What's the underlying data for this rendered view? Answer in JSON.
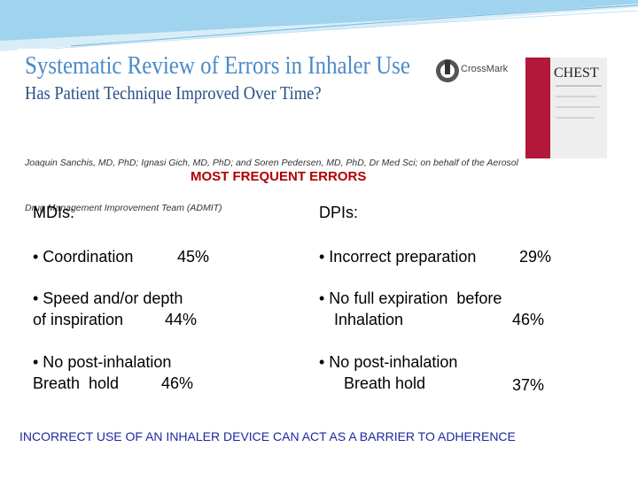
{
  "header": {
    "title": "Systematic Review of Errors in Inhaler Use",
    "subtitle": "Has Patient Technique Improved Over Time?",
    "authors": [
      "Joaquin Sanchis, MD, PhD; Ignasi Gich, MD, PhD; and Soren Pedersen, MD, PhD, Dr Med Sci; on behalf of the Aerosol",
      "Drug Management Improvement Team (ADMIT)"
    ],
    "logo": "CrossMark",
    "journal": "CHEST"
  },
  "section_title": "MOST FREQUENT ERRORS",
  "columns": [
    {
      "heading": "MDIs:",
      "items": [
        {
          "lines": [
            "• Coordination"
          ],
          "value": "45%"
        },
        {
          "lines": [
            "• Speed and/or depth",
            "of inspiration"
          ],
          "value": "44%"
        },
        {
          "lines": [
            "• No post-inhalation",
            "Breath  hold"
          ],
          "value": "46%"
        }
      ]
    },
    {
      "heading": "DPIs:",
      "items": [
        {
          "lines": [
            "• Incorrect preparation"
          ],
          "value": "29%"
        },
        {
          "lines": [
            "• No full expiration  before",
            "Inhalation"
          ],
          "value": "46%"
        },
        {
          "lines": [
            "• No post-inhalation",
            "Breath hold"
          ],
          "value": "37%"
        }
      ]
    }
  ],
  "footer": "INCORRECT USE OF AN INHALER DEVICE CAN ACT AS A BARRIER TO ADHERENCE"
}
